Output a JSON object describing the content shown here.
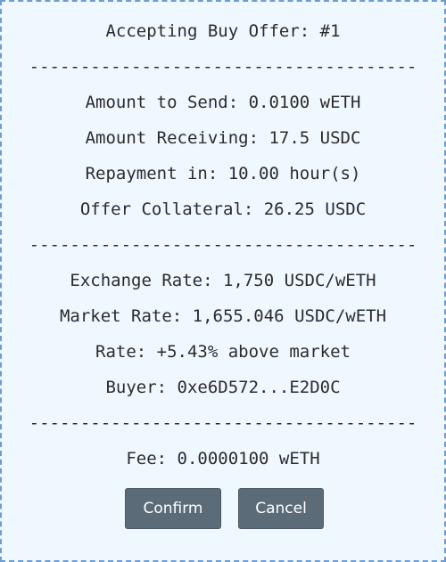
{
  "dialog": {
    "title": "Accepting Buy Offer: #1",
    "separator": "--------------------------------------",
    "amount_to_send": "Amount to Send: 0.0100 wETH",
    "amount_receiving": "Amount Receiving: 17.5 USDC",
    "repayment": "Repayment in: 10.00 hour(s)",
    "offer_collateral": "Offer Collateral: 26.25 USDC",
    "exchange_rate": "Exchange Rate: 1,750 USDC/wETH",
    "market_rate": "Market Rate: 1,655.046 USDC/wETH",
    "rate_vs_market": "Rate: +5.43% above market",
    "buyer": "Buyer: 0xe6D572...E2D0C",
    "fee": "Fee: 0.0000100 wETH"
  },
  "actions": {
    "confirm_label": "Confirm",
    "cancel_label": "Cancel"
  },
  "colors": {
    "background": "#f0f8ff",
    "border": "#6f9bd0",
    "button": "#5b6b78",
    "text": "#2b2b2b"
  }
}
